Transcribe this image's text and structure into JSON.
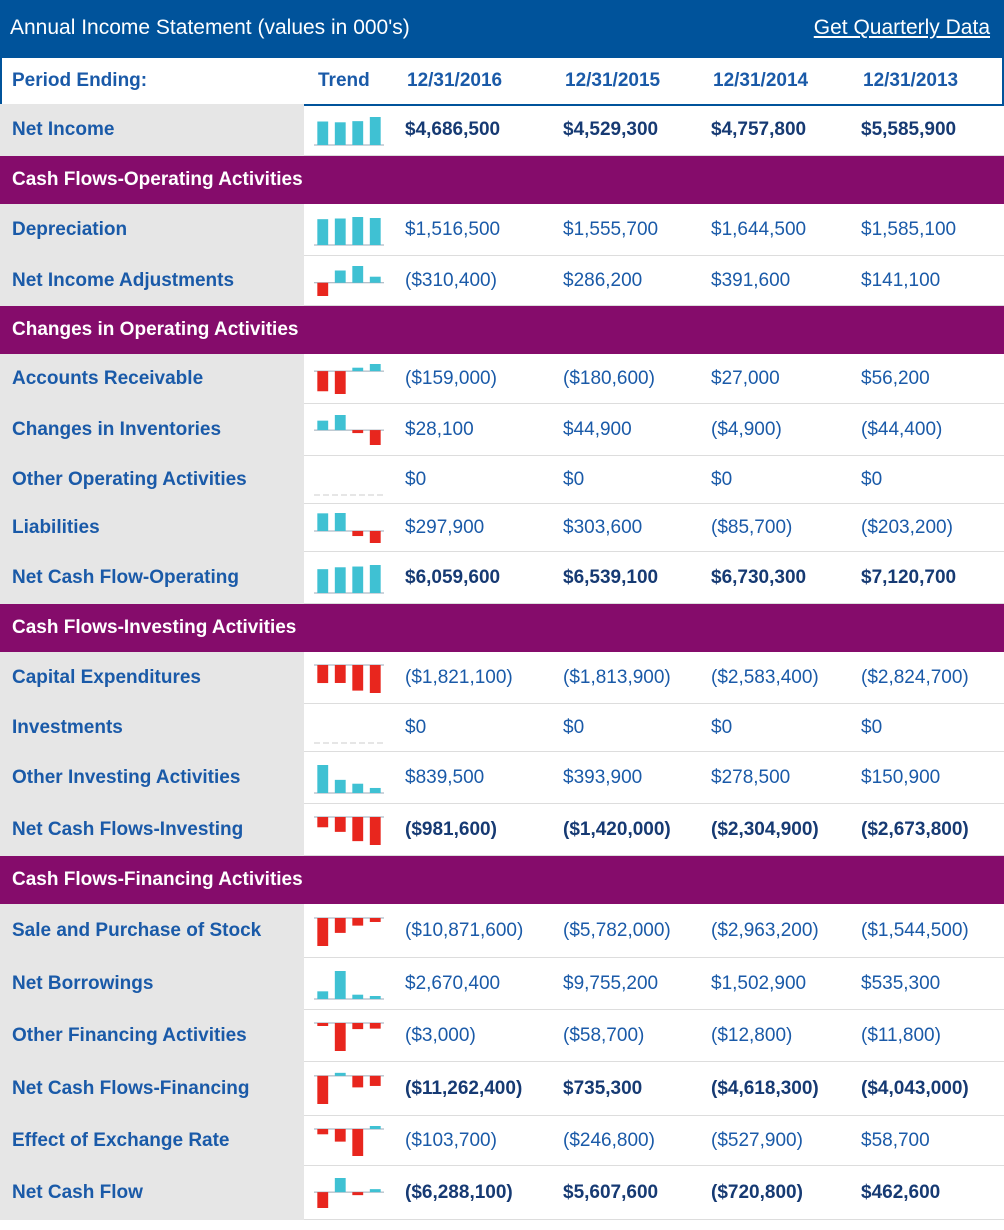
{
  "title": "Annual Income Statement (values in 000's)",
  "link": "Get Quarterly Data",
  "columns": {
    "period": "Period Ending:",
    "trend": "Trend",
    "dates": [
      "12/31/2016",
      "12/31/2015",
      "12/31/2014",
      "12/31/2013"
    ]
  },
  "colors": {
    "header_bg": "#00539b",
    "section_bg": "#850c6b",
    "label_bg": "#e6e6e6",
    "text_blue": "#1a5aa8",
    "trend_positive": "#3fc1d3",
    "trend_negative": "#e8261e"
  },
  "rows": [
    {
      "kind": "row",
      "label": "Net Income",
      "bold": true,
      "values": [
        "$4,686,500",
        "$4,529,300",
        "$4,757,800",
        "$5,585,900"
      ],
      "trend": [
        4686500,
        4529300,
        4757800,
        5585900
      ]
    },
    {
      "kind": "section",
      "label": "Cash Flows-Operating Activities"
    },
    {
      "kind": "row",
      "label": "Depreciation",
      "values": [
        "$1,516,500",
        "$1,555,700",
        "$1,644,500",
        "$1,585,100"
      ],
      "trend": [
        1516500,
        1555700,
        1644500,
        1585100
      ]
    },
    {
      "kind": "row",
      "label": "Net Income Adjustments",
      "values": [
        "($310,400)",
        "$286,200",
        "$391,600",
        "$141,100"
      ],
      "trend": [
        -310400,
        286200,
        391600,
        141100
      ]
    },
    {
      "kind": "section",
      "label": "Changes in Operating Activities"
    },
    {
      "kind": "row",
      "label": "Accounts Receivable",
      "values": [
        "($159,000)",
        "($180,600)",
        "$27,000",
        "$56,200"
      ],
      "trend": [
        -159000,
        -180600,
        27000,
        56200
      ]
    },
    {
      "kind": "row",
      "label": "Changes in Inventories",
      "values": [
        "$28,100",
        "$44,900",
        "($4,900)",
        "($44,400)"
      ],
      "trend": [
        28100,
        44900,
        -4900,
        -44400
      ]
    },
    {
      "kind": "row",
      "label": "Other Operating Activities",
      "values": [
        "$0",
        "$0",
        "$0",
        "$0"
      ],
      "trend": [
        0,
        0,
        0,
        0
      ]
    },
    {
      "kind": "row",
      "label": "Liabilities",
      "values": [
        "$297,900",
        "$303,600",
        "($85,700)",
        "($203,200)"
      ],
      "trend": [
        297900,
        303600,
        -85700,
        -203200
      ]
    },
    {
      "kind": "row",
      "label": "Net Cash Flow-Operating",
      "bold": true,
      "total": true,
      "values": [
        "$6,059,600",
        "$6,539,100",
        "$6,730,300",
        "$7,120,700"
      ],
      "trend": [
        6059600,
        6539100,
        6730300,
        7120700
      ]
    },
    {
      "kind": "section",
      "label": "Cash Flows-Investing Activities"
    },
    {
      "kind": "row",
      "label": "Capital Expenditures",
      "values": [
        "($1,821,100)",
        "($1,813,900)",
        "($2,583,400)",
        "($2,824,700)"
      ],
      "trend": [
        -1821100,
        -1813900,
        -2583400,
        -2824700
      ]
    },
    {
      "kind": "row",
      "label": "Investments",
      "values": [
        "$0",
        "$0",
        "$0",
        "$0"
      ],
      "trend": [
        0,
        0,
        0,
        0
      ]
    },
    {
      "kind": "row",
      "label": "Other Investing Activities",
      "values": [
        "$839,500",
        "$393,900",
        "$278,500",
        "$150,900"
      ],
      "trend": [
        839500,
        393900,
        278500,
        150900
      ]
    },
    {
      "kind": "row",
      "label": "Net Cash Flows-Investing",
      "bold": true,
      "total": true,
      "values": [
        "($981,600)",
        "($1,420,000)",
        "($2,304,900)",
        "($2,673,800)"
      ],
      "trend": [
        -981600,
        -1420000,
        -2304900,
        -2673800
      ]
    },
    {
      "kind": "section",
      "label": "Cash Flows-Financing Activities"
    },
    {
      "kind": "row",
      "label": "Sale and Purchase of Stock",
      "values": [
        "($10,871,600)",
        "($5,782,000)",
        "($2,963,200)",
        "($1,544,500)"
      ],
      "trend": [
        -10871600,
        -5782000,
        -2963200,
        -1544500
      ]
    },
    {
      "kind": "row",
      "label": "Net Borrowings",
      "values": [
        "$2,670,400",
        "$9,755,200",
        "$1,502,900",
        "$535,300"
      ],
      "trend": [
        2670400,
        9755200,
        1502900,
        535300
      ]
    },
    {
      "kind": "row",
      "label": "Other Financing Activities",
      "values": [
        "($3,000)",
        "($58,700)",
        "($12,800)",
        "($11,800)"
      ],
      "trend": [
        -3000,
        -58700,
        -12800,
        -11800
      ]
    },
    {
      "kind": "row",
      "label": "Net Cash Flows-Financing",
      "bold": true,
      "total": true,
      "values": [
        "($11,262,400)",
        "$735,300",
        "($4,618,300)",
        "($4,043,000)"
      ],
      "trend": [
        -11262400,
        735300,
        -4618300,
        -4043000
      ]
    },
    {
      "kind": "row",
      "label": "Effect of Exchange Rate",
      "values": [
        "($103,700)",
        "($246,800)",
        "($527,900)",
        "$58,700"
      ],
      "trend": [
        -103700,
        -246800,
        -527900,
        58700
      ]
    },
    {
      "kind": "row",
      "label": "Net Cash Flow",
      "bold": true,
      "total": true,
      "values": [
        "($6,288,100)",
        "$5,607,600",
        "($720,800)",
        "$462,600"
      ],
      "trend": [
        -6288100,
        5607600,
        -720800,
        462600
      ]
    }
  ]
}
